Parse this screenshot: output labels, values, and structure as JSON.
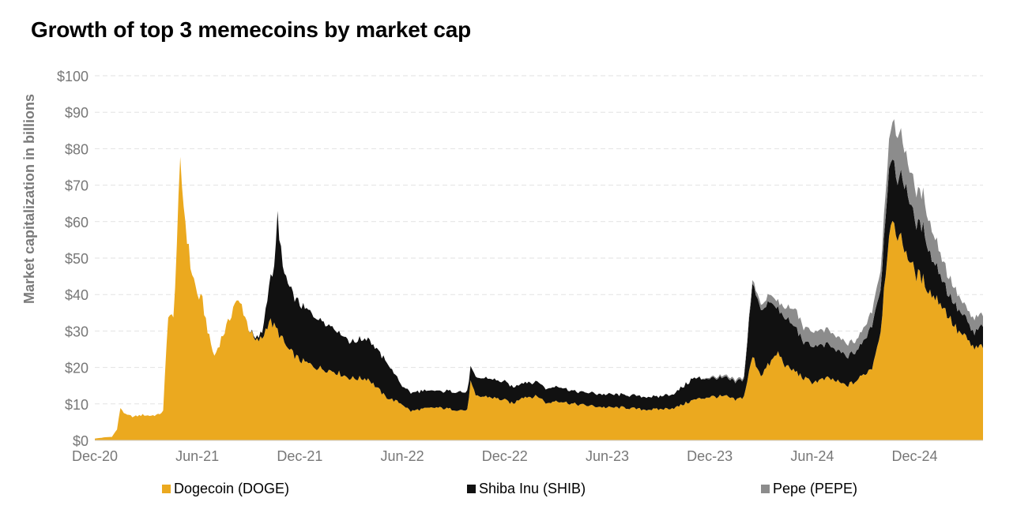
{
  "chart_data": {
    "type": "area",
    "stacked": true,
    "title": "Growth of top 3 memecoins by market cap",
    "xlabel": "",
    "ylabel": "Market capitalization in billions",
    "ylim": [
      0,
      100
    ],
    "y_ticks": [
      0,
      10,
      20,
      30,
      40,
      50,
      60,
      70,
      80,
      90,
      100
    ],
    "y_tick_labels": [
      "$0",
      "$10",
      "$20",
      "$30",
      "$40",
      "$50",
      "$60",
      "$70",
      "$80",
      "$90",
      "$100"
    ],
    "x_ticks": [
      0,
      6,
      12,
      18,
      24,
      30,
      36,
      42,
      48
    ],
    "x_tick_labels": [
      "Dec-20",
      "Jun-21",
      "Dec-21",
      "Jun-22",
      "Dec-22",
      "Jun-23",
      "Dec-23",
      "Jun-24",
      "Dec-24"
    ],
    "xlim": [
      0,
      52
    ],
    "grid": true,
    "legend_position": "bottom",
    "series": [
      {
        "name": "Dogecoin (DOGE)",
        "color": "#EBA91F",
        "points": [
          [
            0,
            0.5
          ],
          [
            0.5,
            0.8
          ],
          [
            1,
            1
          ],
          [
            1.3,
            3
          ],
          [
            1.5,
            9
          ],
          [
            1.8,
            7
          ],
          [
            2.3,
            6.5
          ],
          [
            2.8,
            7
          ],
          [
            3.2,
            6.8
          ],
          [
            3.7,
            7
          ],
          [
            4,
            8
          ],
          [
            4.3,
            35
          ],
          [
            4.6,
            33
          ],
          [
            5,
            75
          ],
          [
            5.3,
            60
          ],
          [
            5.6,
            48
          ],
          [
            6,
            40
          ],
          [
            6.3,
            38
          ],
          [
            6.7,
            28
          ],
          [
            7,
            23
          ],
          [
            7.4,
            28
          ],
          [
            7.8,
            32
          ],
          [
            8.2,
            38
          ],
          [
            8.6,
            37
          ],
          [
            9,
            31
          ],
          [
            9.4,
            27
          ],
          [
            9.8,
            28
          ],
          [
            10.2,
            33
          ],
          [
            10.7,
            30
          ],
          [
            11.3,
            25
          ],
          [
            12,
            22
          ],
          [
            13,
            20
          ],
          [
            14,
            19
          ],
          [
            15,
            17
          ],
          [
            16,
            17
          ],
          [
            17,
            12
          ],
          [
            18,
            10
          ],
          [
            18.5,
            8
          ],
          [
            19,
            8.5
          ],
          [
            20,
            9
          ],
          [
            21,
            8.5
          ],
          [
            21.8,
            8.2
          ],
          [
            22,
            16
          ],
          [
            22.3,
            12
          ],
          [
            23,
            12
          ],
          [
            24,
            11
          ],
          [
            24.5,
            10
          ],
          [
            25,
            12
          ],
          [
            26,
            12
          ],
          [
            26.5,
            10
          ],
          [
            27,
            11
          ],
          [
            28,
            10
          ],
          [
            29,
            9.5
          ],
          [
            30,
            9
          ],
          [
            31,
            9
          ],
          [
            32,
            8.5
          ],
          [
            33,
            8.5
          ],
          [
            34,
            9
          ],
          [
            35,
            11
          ],
          [
            36,
            12
          ],
          [
            37,
            12
          ],
          [
            37.5,
            11
          ],
          [
            38,
            12
          ],
          [
            38.5,
            23
          ],
          [
            39,
            18
          ],
          [
            39.5,
            21
          ],
          [
            40,
            24
          ],
          [
            40.5,
            20
          ],
          [
            41,
            19
          ],
          [
            41.5,
            17
          ],
          [
            42,
            16
          ],
          [
            43,
            17
          ],
          [
            44,
            15
          ],
          [
            44.5,
            16
          ],
          [
            45,
            18
          ],
          [
            45.5,
            20
          ],
          [
            46,
            30
          ],
          [
            46.5,
            58
          ],
          [
            47,
            57
          ],
          [
            47.5,
            52
          ],
          [
            48,
            46
          ],
          [
            48.5,
            44
          ],
          [
            49,
            40
          ],
          [
            49.5,
            38
          ],
          [
            50,
            34
          ],
          [
            50.5,
            30
          ],
          [
            51,
            28
          ],
          [
            51.5,
            25
          ],
          [
            52,
            26
          ]
        ]
      },
      {
        "name": "Shiba Inu (SHIB)",
        "color": "#111111",
        "points": [
          [
            0,
            0
          ],
          [
            9,
            0
          ],
          [
            9.4,
            0.5
          ],
          [
            9.8,
            1.5
          ],
          [
            10.2,
            10
          ],
          [
            10.5,
            15
          ],
          [
            10.7,
            31
          ],
          [
            11,
            20
          ],
          [
            11.3,
            18
          ],
          [
            12,
            15
          ],
          [
            13,
            14
          ],
          [
            14,
            12
          ],
          [
            15,
            10
          ],
          [
            16,
            11
          ],
          [
            17,
            10
          ],
          [
            18,
            5
          ],
          [
            19,
            5
          ],
          [
            20,
            4.5
          ],
          [
            21,
            5
          ],
          [
            21.8,
            5
          ],
          [
            22,
            4
          ],
          [
            22.3,
            5
          ],
          [
            23,
            5
          ],
          [
            24,
            5
          ],
          [
            25,
            4
          ],
          [
            26,
            4
          ],
          [
            27,
            4
          ],
          [
            28,
            3.5
          ],
          [
            29,
            3.5
          ],
          [
            30,
            3.5
          ],
          [
            31,
            3.5
          ],
          [
            32,
            3.5
          ],
          [
            33,
            3.5
          ],
          [
            34,
            4
          ],
          [
            35,
            6
          ],
          [
            36,
            5
          ],
          [
            37,
            5
          ],
          [
            37.5,
            5
          ],
          [
            38,
            5
          ],
          [
            38.5,
            20
          ],
          [
            39,
            18
          ],
          [
            39.5,
            17
          ],
          [
            40,
            12
          ],
          [
            40.5,
            13
          ],
          [
            41,
            12
          ],
          [
            41.5,
            10
          ],
          [
            42,
            10
          ],
          [
            43,
            9
          ],
          [
            44,
            8
          ],
          [
            44.5,
            8
          ],
          [
            45,
            9
          ],
          [
            45.5,
            12
          ],
          [
            46,
            12
          ],
          [
            46.5,
            18
          ],
          [
            47,
            16
          ],
          [
            47.5,
            18
          ],
          [
            48,
            14
          ],
          [
            48.5,
            14
          ],
          [
            49,
            10
          ],
          [
            49.5,
            8
          ],
          [
            50,
            6
          ],
          [
            50.5,
            6
          ],
          [
            51,
            5
          ],
          [
            51.5,
            4
          ],
          [
            52,
            6
          ]
        ]
      },
      {
        "name": "Pepe (PEPE)",
        "color": "#8C8C8C",
        "points": [
          [
            0,
            0
          ],
          [
            35,
            0
          ],
          [
            36,
            0.3
          ],
          [
            37,
            0.5
          ],
          [
            38,
            0.5
          ],
          [
            38.5,
            1
          ],
          [
            39,
            1.5
          ],
          [
            39.5,
            2
          ],
          [
            40,
            2
          ],
          [
            40.5,
            3
          ],
          [
            41,
            5
          ],
          [
            41.5,
            4
          ],
          [
            42,
            4
          ],
          [
            43,
            4
          ],
          [
            44,
            3.5
          ],
          [
            44.5,
            3
          ],
          [
            45,
            3.5
          ],
          [
            45.5,
            4
          ],
          [
            46,
            5
          ],
          [
            46.5,
            8
          ],
          [
            47,
            13
          ],
          [
            47.5,
            9
          ],
          [
            48,
            9
          ],
          [
            48.5,
            9
          ],
          [
            49,
            8
          ],
          [
            49.5,
            6
          ],
          [
            50,
            5
          ],
          [
            50.5,
            4
          ],
          [
            51,
            3
          ],
          [
            51.5,
            4
          ],
          [
            52,
            3
          ]
        ]
      }
    ],
    "legend": [
      "Dogecoin (DOGE)",
      "Shiba Inu (SHIB)",
      "Pepe (PEPE)"
    ]
  }
}
